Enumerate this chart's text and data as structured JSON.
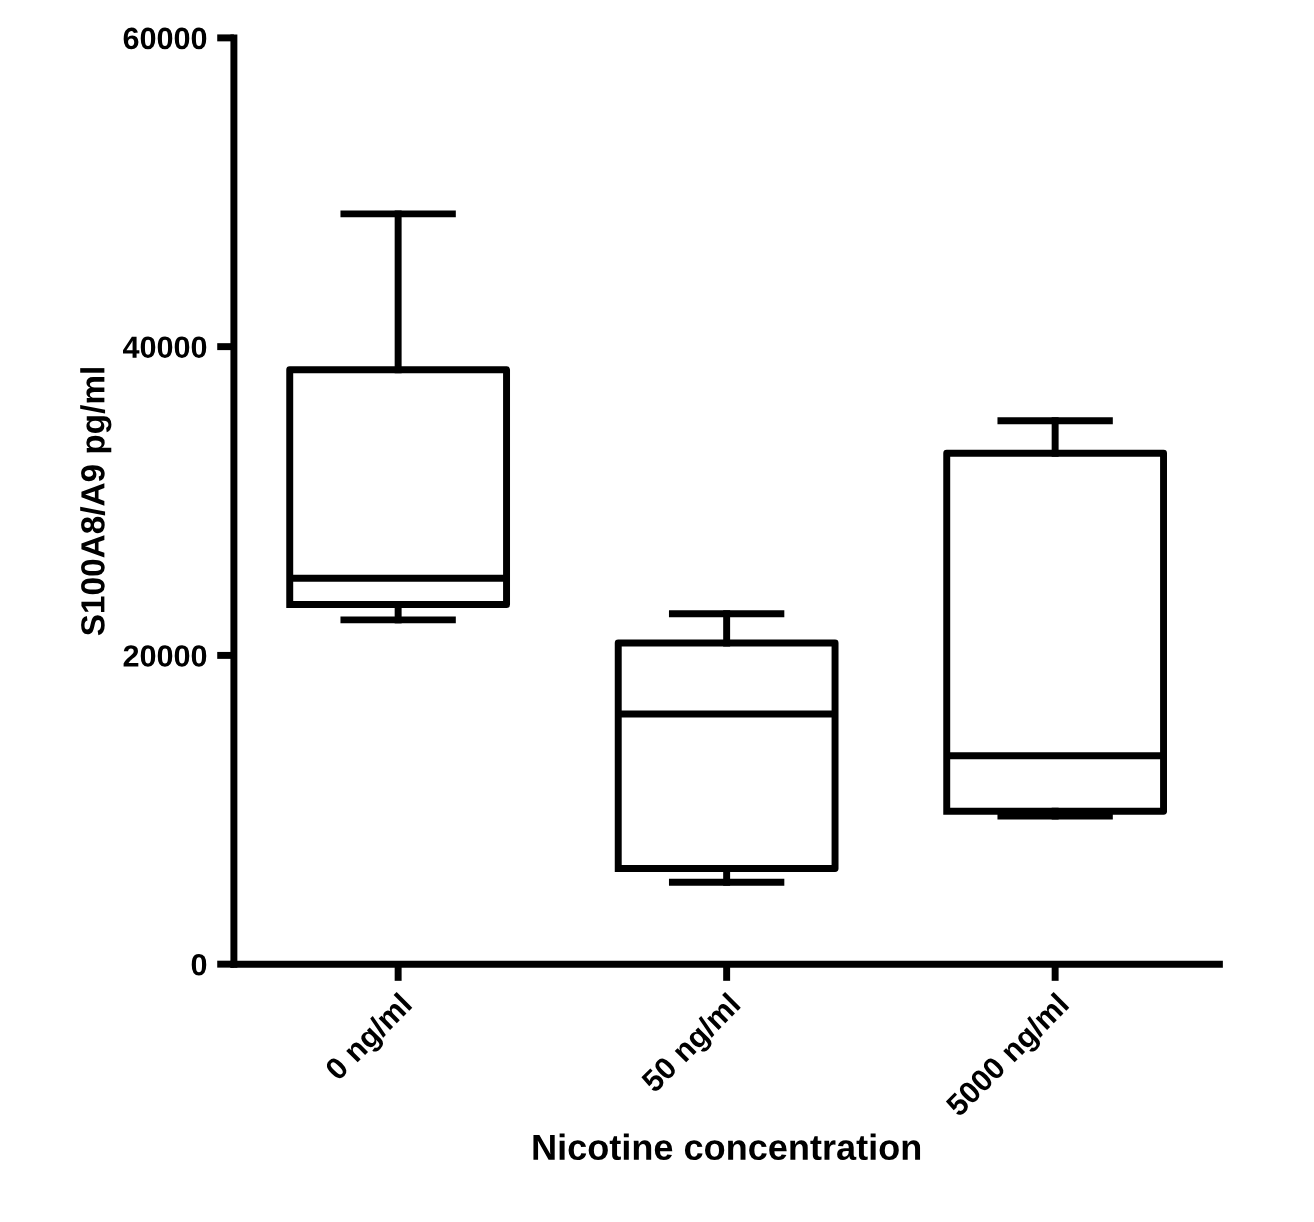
{
  "chart_data": {
    "type": "box",
    "xlabel": "Nicotine concentration",
    "ylabel": "S100A8/A9 pg/ml",
    "categories": [
      "0 ng/ml",
      "50 ng/ml",
      "5000 ng/ml"
    ],
    "boxes": [
      {
        "low": 22300,
        "q1": 23300,
        "median": 25000,
        "q3": 38500,
        "high": 48600
      },
      {
        "low": 5300,
        "q1": 6200,
        "median": 16200,
        "q3": 20800,
        "high": 22700
      },
      {
        "low": 9600,
        "q1": 9900,
        "median": 13500,
        "q3": 33100,
        "high": 35200
      }
    ],
    "color": "#000000",
    "ylim": [
      0,
      60000
    ],
    "yticks": [
      0,
      20000,
      40000,
      60000
    ],
    "grid": false
  }
}
